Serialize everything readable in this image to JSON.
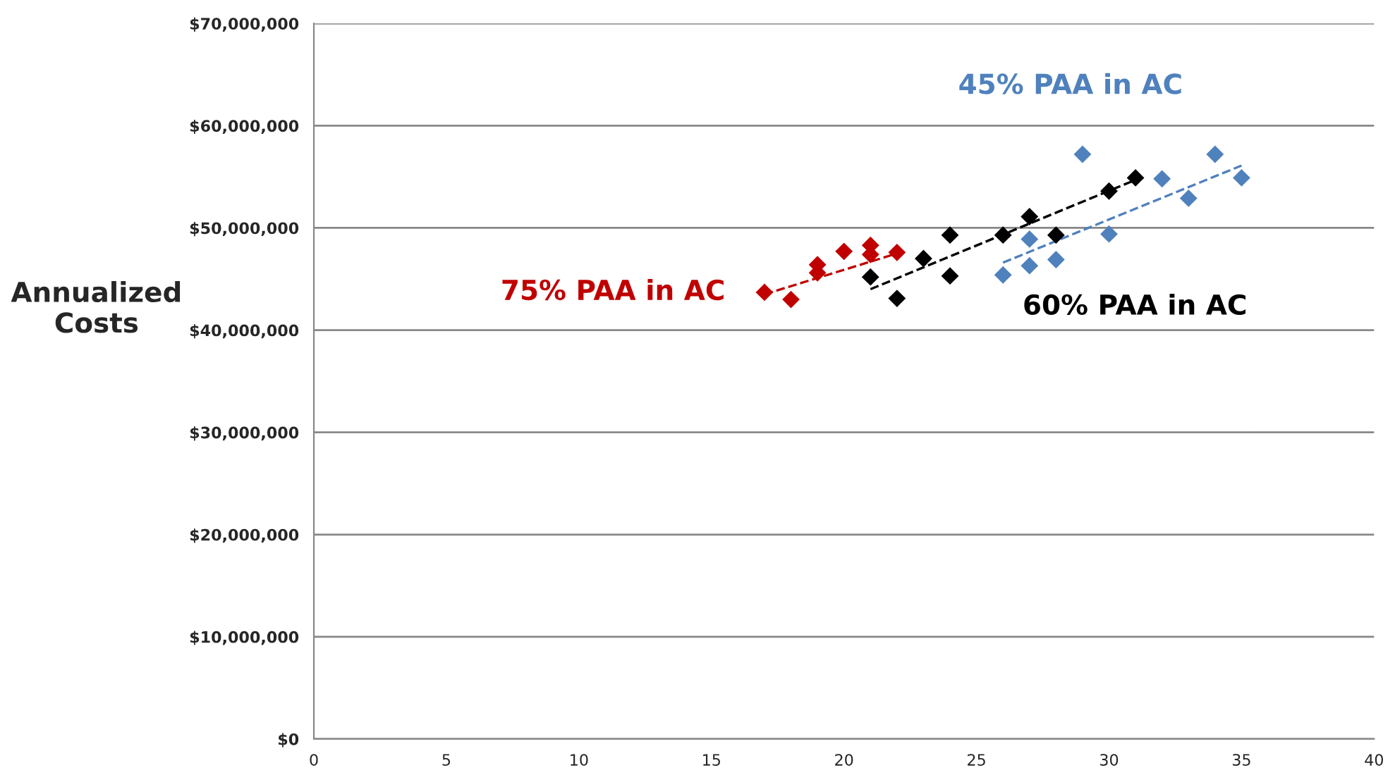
{
  "chart_data": {
    "type": "scatter",
    "ylabel": "Annualized\nCosts",
    "xlim": [
      0,
      40
    ],
    "xticks": [
      0,
      5,
      10,
      15,
      20,
      25,
      30,
      35,
      40
    ],
    "ylim": [
      0,
      70000000
    ],
    "yticks": [
      {
        "value": 0,
        "label": "$0"
      },
      {
        "value": 10000000,
        "label": "$10,000,000"
      },
      {
        "value": 20000000,
        "label": "$20,000,000"
      },
      {
        "value": 30000000,
        "label": "$30,000,000"
      },
      {
        "value": 40000000,
        "label": "$40,000,000"
      },
      {
        "value": 50000000,
        "label": "$50,000,000"
      },
      {
        "value": 60000000,
        "label": "$60,000,000"
      },
      {
        "value": 70000000,
        "label": "$70,000,000"
      }
    ],
    "grid": "y",
    "legend": false,
    "marker": "diamond",
    "series": [
      {
        "name": "75% PAA in AC",
        "color": "#c00000",
        "x": [
          17,
          18,
          19,
          19,
          20,
          21,
          21,
          22
        ],
        "values": [
          43700000,
          43000000,
          46400000,
          45600000,
          47700000,
          48300000,
          47400000,
          47600000
        ]
      },
      {
        "name": "60% PAA in AC",
        "color": "#000000",
        "x": [
          21,
          22,
          23,
          24,
          24,
          26,
          27,
          28,
          30,
          31
        ],
        "values": [
          45200000,
          43100000,
          47000000,
          49300000,
          45300000,
          49300000,
          51100000,
          49300000,
          53600000,
          54900000
        ]
      },
      {
        "name": "45% PAA in AC",
        "color": "#4f81bd",
        "x": [
          26,
          27,
          27,
          28,
          29,
          30,
          32,
          33,
          34,
          35
        ],
        "values": [
          45400000,
          48900000,
          46300000,
          46900000,
          57200000,
          49400000,
          54800000,
          52900000,
          57200000,
          54900000
        ]
      },
      {
        "type": "line",
        "marker": "none",
        "line_style": "dashed",
        "color": "#c00000",
        "x": [
          17,
          22
        ],
        "values": [
          43500000,
          47500000
        ]
      },
      {
        "type": "line",
        "marker": "none",
        "line_style": "dashed",
        "color": "#000000",
        "x": [
          21,
          31
        ],
        "values": [
          44000000,
          54700000
        ]
      },
      {
        "type": "line",
        "marker": "none",
        "line_style": "dashed",
        "color": "#4f81bd",
        "x": [
          26,
          35
        ],
        "values": [
          46600000,
          56100000
        ]
      }
    ]
  }
}
